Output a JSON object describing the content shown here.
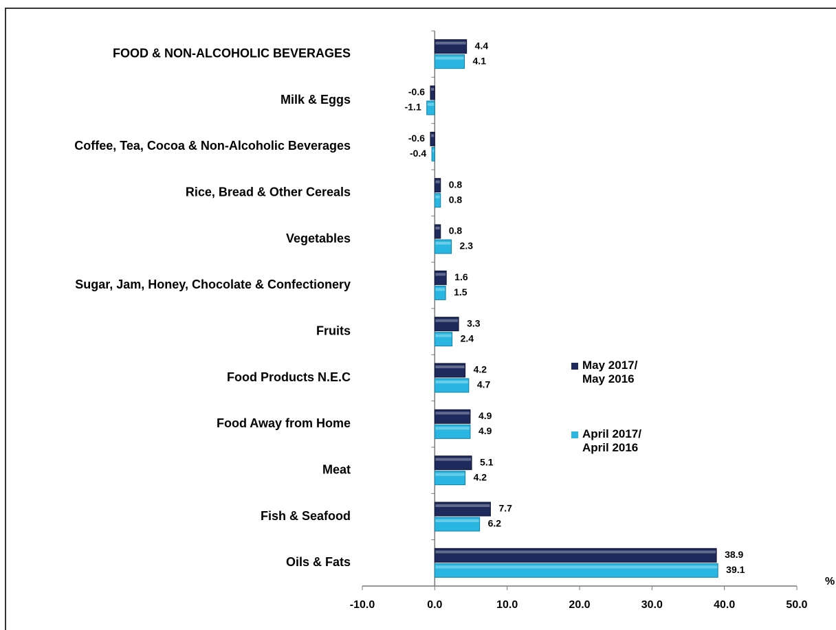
{
  "chart_data": {
    "type": "bar",
    "orientation": "horizontal",
    "categories": [
      "FOOD & NON-ALCOHOLIC BEVERAGES",
      "Milk & Eggs",
      "Coffee, Tea, Cocoa & Non-Alcoholic Beverages",
      "Rice, Bread & Other Cereals",
      "Vegetables",
      "Sugar, Jam, Honey, Chocolate & Confectionery",
      "Fruits",
      "Food Products N.E.C",
      "Food Away from Home",
      "Meat",
      "Fish & Seafood",
      "Oils & Fats"
    ],
    "series": [
      {
        "name": "May 2017/ May 2016",
        "color": "#1f2a5c",
        "values": [
          4.4,
          -0.6,
          -0.6,
          0.8,
          0.8,
          1.6,
          3.3,
          4.2,
          4.9,
          5.1,
          7.7,
          38.9
        ]
      },
      {
        "name": "April 2017/ April 2016",
        "color": "#29b6e0",
        "values": [
          4.1,
          -1.1,
          -0.4,
          0.8,
          2.3,
          1.5,
          2.4,
          4.7,
          4.9,
          4.2,
          6.2,
          39.1
        ]
      }
    ],
    "x_label": "%",
    "xlim": [
      -10,
      50
    ],
    "xticks": [
      {
        "value": -10,
        "label": "-10.0"
      },
      {
        "value": 0,
        "label": "0.0"
      },
      {
        "value": 10,
        "label": "10.0"
      },
      {
        "value": 20,
        "label": "20.0"
      },
      {
        "value": 30,
        "label": "30.0"
      },
      {
        "value": 40,
        "label": "40.0"
      },
      {
        "value": 50,
        "label": "50.0"
      }
    ],
    "grid": false
  }
}
